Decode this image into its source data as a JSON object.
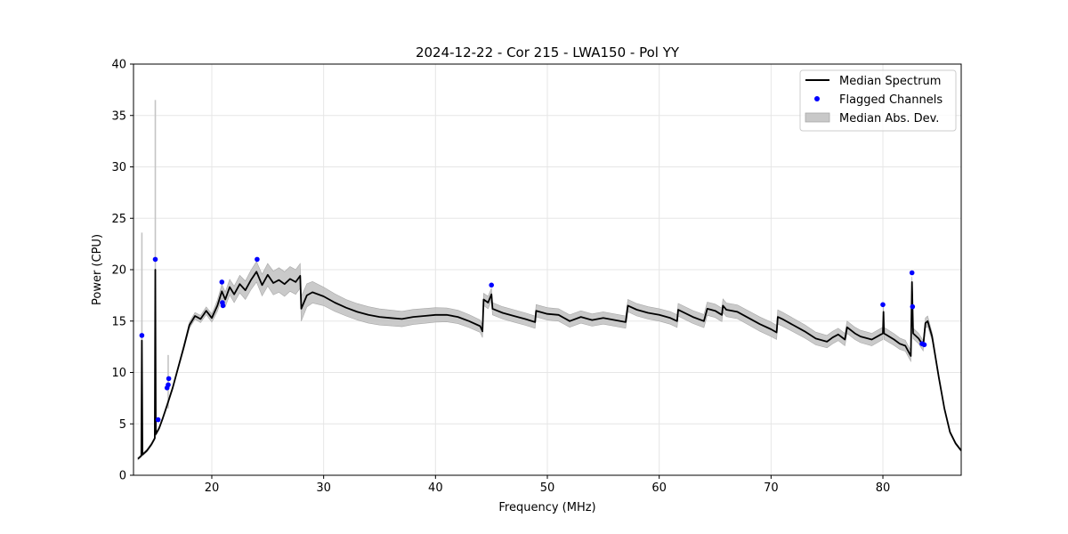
{
  "chart_data": {
    "type": "line",
    "title": "2024-12-22 - Cor 215 - LWA150 - Pol YY",
    "xlabel": "Frequency (MHz)",
    "ylabel": "Power (CPU)",
    "xlim": [
      13.0,
      87.0
    ],
    "ylim": [
      0,
      40
    ],
    "x_ticks": [
      20,
      30,
      40,
      50,
      60,
      70,
      80
    ],
    "y_ticks": [
      0,
      5,
      10,
      15,
      20,
      25,
      30,
      35,
      40
    ],
    "grid": true,
    "legend_position": "top-right",
    "legend": [
      {
        "label": "Median Spectrum",
        "kind": "line",
        "color": "#000000"
      },
      {
        "label": "Flagged Channels",
        "kind": "marker",
        "color": "#0000ff"
      },
      {
        "label": "Median Abs. Dev.",
        "kind": "patch",
        "color": "#bdbdbd"
      }
    ],
    "series": [
      {
        "name": "Median Spectrum",
        "color": "#000000",
        "points": [
          [
            13.4,
            1.6
          ],
          [
            13.7,
            1.9
          ],
          [
            13.75,
            13.1
          ],
          [
            13.8,
            2.0
          ],
          [
            14.2,
            2.4
          ],
          [
            14.6,
            3.0
          ],
          [
            14.9,
            3.6
          ],
          [
            14.95,
            20.0
          ],
          [
            15.0,
            4.0
          ],
          [
            15.3,
            4.6
          ],
          [
            15.6,
            5.5
          ],
          [
            16.0,
            6.8
          ],
          [
            16.5,
            8.5
          ],
          [
            17.0,
            10.5
          ],
          [
            17.5,
            12.5
          ],
          [
            18.0,
            14.6
          ],
          [
            18.5,
            15.5
          ],
          [
            19.0,
            15.2
          ],
          [
            19.5,
            16.0
          ],
          [
            20.0,
            15.3
          ],
          [
            20.5,
            16.5
          ],
          [
            20.9,
            17.9
          ],
          [
            21.2,
            17.1
          ],
          [
            21.6,
            18.3
          ],
          [
            22.0,
            17.6
          ],
          [
            22.5,
            18.6
          ],
          [
            23.0,
            18.0
          ],
          [
            23.5,
            19.0
          ],
          [
            24.0,
            19.8
          ],
          [
            24.5,
            18.5
          ],
          [
            25.0,
            19.5
          ],
          [
            25.5,
            18.7
          ],
          [
            26.0,
            19.0
          ],
          [
            26.5,
            18.6
          ],
          [
            27.0,
            19.1
          ],
          [
            27.5,
            18.8
          ],
          [
            27.9,
            19.4
          ],
          [
            28.0,
            16.2
          ],
          [
            28.5,
            17.5
          ],
          [
            29.0,
            17.8
          ],
          [
            30.0,
            17.4
          ],
          [
            31.0,
            16.8
          ],
          [
            32.0,
            16.3
          ],
          [
            33.0,
            15.9
          ],
          [
            34.0,
            15.6
          ],
          [
            35.0,
            15.4
          ],
          [
            36.0,
            15.3
          ],
          [
            37.0,
            15.2
          ],
          [
            38.0,
            15.4
          ],
          [
            39.0,
            15.5
          ],
          [
            40.0,
            15.6
          ],
          [
            41.0,
            15.6
          ],
          [
            42.0,
            15.4
          ],
          [
            43.0,
            15.0
          ],
          [
            44.0,
            14.5
          ],
          [
            44.2,
            14.0
          ],
          [
            44.3,
            17.1
          ],
          [
            44.7,
            16.8
          ],
          [
            45.0,
            17.6
          ],
          [
            45.1,
            16.2
          ],
          [
            46.0,
            15.8
          ],
          [
            47.0,
            15.5
          ],
          [
            48.0,
            15.2
          ],
          [
            48.9,
            14.9
          ],
          [
            49.0,
            16.0
          ],
          [
            50.0,
            15.7
          ],
          [
            51.0,
            15.6
          ],
          [
            52.0,
            15.0
          ],
          [
            53.0,
            15.4
          ],
          [
            54.0,
            15.1
          ],
          [
            55.0,
            15.3
          ],
          [
            57.0,
            14.9
          ],
          [
            57.2,
            16.5
          ],
          [
            58.0,
            16.1
          ],
          [
            59.0,
            15.8
          ],
          [
            60.0,
            15.6
          ],
          [
            61.0,
            15.3
          ],
          [
            61.6,
            15.0
          ],
          [
            61.7,
            16.1
          ],
          [
            63.0,
            15.4
          ],
          [
            64.0,
            15.0
          ],
          [
            64.3,
            16.2
          ],
          [
            65.0,
            16.0
          ],
          [
            65.6,
            15.6
          ],
          [
            65.7,
            16.5
          ],
          [
            66.0,
            16.1
          ],
          [
            67.0,
            15.9
          ],
          [
            68.0,
            15.3
          ],
          [
            69.0,
            14.7
          ],
          [
            70.0,
            14.2
          ],
          [
            70.5,
            13.9
          ],
          [
            70.6,
            15.4
          ],
          [
            71.0,
            15.2
          ],
          [
            72.0,
            14.6
          ],
          [
            73.0,
            14.0
          ],
          [
            74.0,
            13.3
          ],
          [
            75.0,
            13.0
          ],
          [
            75.5,
            13.4
          ],
          [
            76.0,
            13.7
          ],
          [
            76.6,
            13.2
          ],
          [
            76.8,
            14.4
          ],
          [
            77.5,
            13.8
          ],
          [
            78.0,
            13.5
          ],
          [
            79.0,
            13.2
          ],
          [
            80.0,
            13.8
          ],
          [
            80.05,
            15.9
          ],
          [
            80.1,
            13.8
          ],
          [
            81.0,
            13.2
          ],
          [
            81.5,
            12.8
          ],
          [
            82.0,
            12.6
          ],
          [
            82.5,
            11.6
          ],
          [
            82.6,
            18.8
          ],
          [
            82.7,
            13.8
          ],
          [
            83.2,
            13.3
          ],
          [
            83.6,
            12.6
          ],
          [
            83.8,
            14.8
          ],
          [
            84.0,
            15.0
          ],
          [
            84.4,
            13.5
          ],
          [
            85.0,
            9.5
          ],
          [
            85.5,
            6.5
          ],
          [
            86.0,
            4.2
          ],
          [
            86.5,
            3.1
          ],
          [
            87.0,
            2.4
          ]
        ]
      }
    ],
    "band": {
      "name": "Median Abs. Dev.",
      "color": "#bdbdbd",
      "spread_points": [
        [
          13.4,
          0.1
        ],
        [
          17.0,
          0.2
        ],
        [
          18.0,
          0.3
        ],
        [
          20.0,
          0.4
        ],
        [
          21.0,
          0.7
        ],
        [
          23.0,
          0.9
        ],
        [
          26.0,
          1.2
        ],
        [
          28.0,
          1.2
        ],
        [
          30.0,
          0.9
        ],
        [
          32.0,
          0.8
        ],
        [
          34.0,
          0.8
        ],
        [
          40.0,
          0.7
        ],
        [
          44.0,
          0.6
        ],
        [
          46.0,
          0.6
        ],
        [
          50.0,
          0.6
        ],
        [
          60.0,
          0.6
        ],
        [
          70.0,
          0.7
        ],
        [
          75.0,
          0.6
        ],
        [
          80.0,
          0.6
        ],
        [
          83.0,
          0.5
        ],
        [
          84.0,
          0.5
        ],
        [
          85.0,
          0.2
        ],
        [
          87.0,
          0.1
        ]
      ],
      "spikes": [
        {
          "x": 13.75,
          "low": 1.9,
          "high": 23.6
        },
        {
          "x": 14.95,
          "low": 3.6,
          "high": 36.5
        },
        {
          "x": 16.1,
          "low": 6.5,
          "high": 11.7
        }
      ]
    },
    "flagged_channels": {
      "name": "Flagged Channels",
      "color": "#0000ff",
      "points": [
        [
          13.75,
          13.6
        ],
        [
          14.95,
          21.0
        ],
        [
          15.2,
          5.4
        ],
        [
          16.0,
          8.5
        ],
        [
          16.1,
          8.8
        ],
        [
          16.15,
          9.4
        ],
        [
          20.9,
          18.8
        ],
        [
          20.95,
          16.8
        ],
        [
          21.0,
          16.5
        ],
        [
          24.05,
          21.0
        ],
        [
          45.0,
          18.5
        ],
        [
          80.0,
          16.6
        ],
        [
          82.6,
          19.7
        ],
        [
          82.65,
          16.4
        ],
        [
          83.5,
          12.8
        ],
        [
          83.7,
          12.7
        ]
      ]
    }
  }
}
